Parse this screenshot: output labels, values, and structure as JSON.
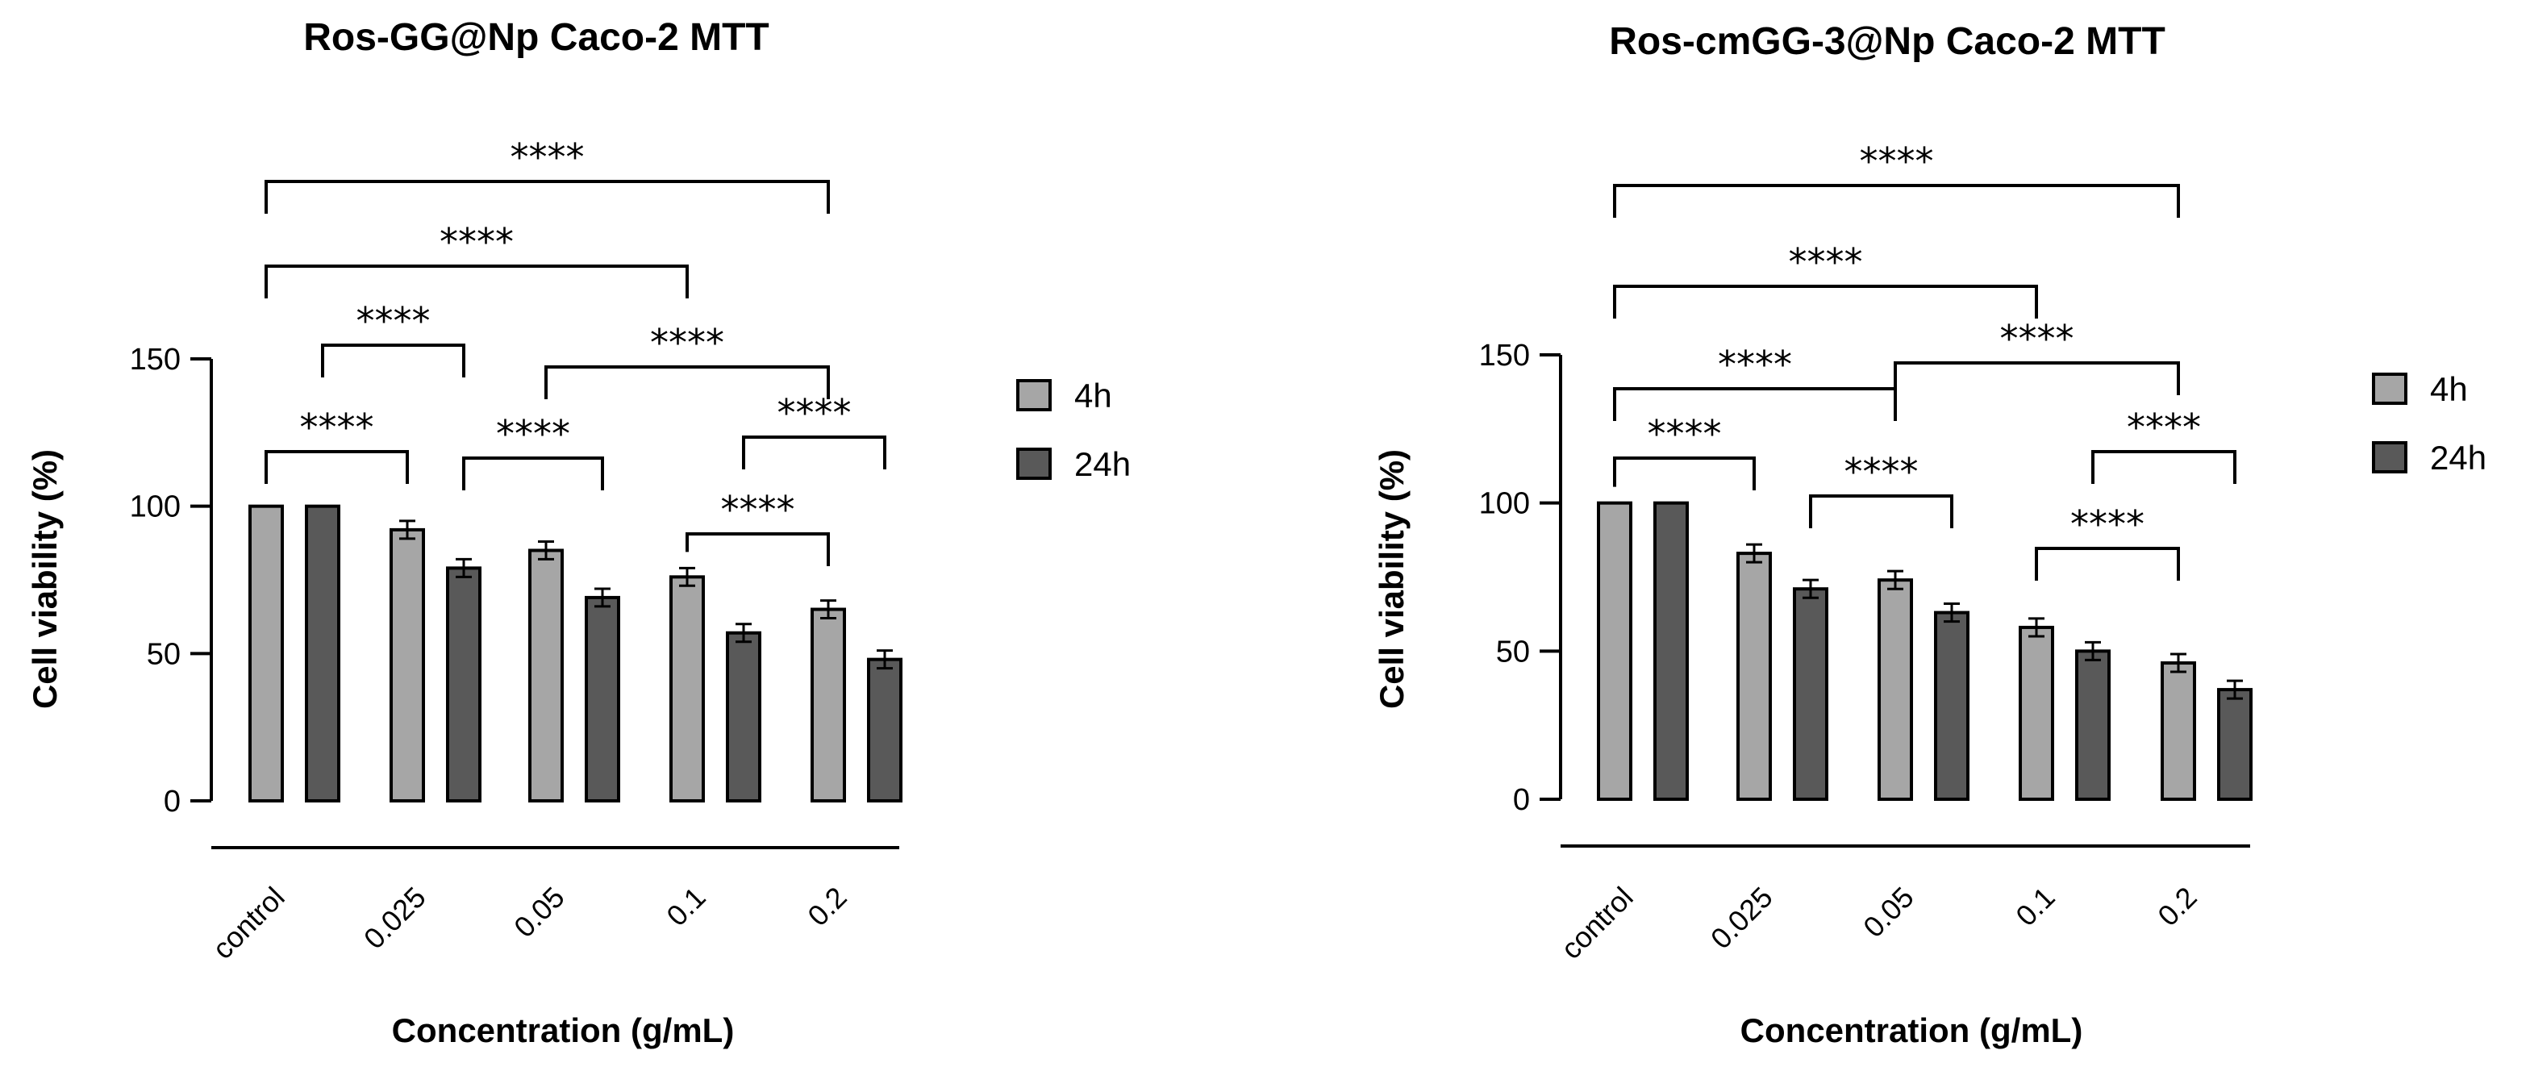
{
  "chart_data": [
    {
      "type": "bar",
      "title": "Ros-GG@Np Caco-2 MTT",
      "xlabel": "Concentration (g/mL)",
      "ylabel": "Cell viability (%)",
      "ylim": [
        0,
        150
      ],
      "yticks": [
        "0",
        "50",
        "100",
        "150"
      ],
      "categories": [
        "control",
        "0.025",
        "0.05",
        "0.1",
        "0.2"
      ],
      "legend_position": "right",
      "series": [
        {
          "name": "4h",
          "color": "#a6a6a6",
          "values": [
            100,
            92,
            85,
            76,
            65
          ],
          "errors": [
            0,
            3,
            3,
            3,
            3
          ]
        },
        {
          "name": "24h",
          "color": "#595959",
          "values": [
            100,
            79,
            69,
            57,
            48
          ],
          "errors": [
            0,
            3,
            3,
            3,
            3
          ]
        }
      ],
      "significance": [
        {
          "label": "****",
          "from": [
            0,
            0
          ],
          "to": [
            4,
            0
          ]
        },
        {
          "label": "****",
          "from": [
            0,
            0
          ],
          "to": [
            3,
            0
          ]
        },
        {
          "label": "****",
          "from": [
            0,
            1
          ],
          "to": [
            1,
            1
          ]
        },
        {
          "label": "****",
          "from": [
            2,
            0
          ],
          "to": [
            4,
            0
          ]
        },
        {
          "label": "****",
          "from": [
            0,
            0
          ],
          "to": [
            1,
            0
          ]
        },
        {
          "label": "****",
          "from": [
            1,
            1
          ],
          "to": [
            2,
            1
          ]
        },
        {
          "label": "****",
          "from": [
            3,
            1
          ],
          "to": [
            4,
            1
          ]
        },
        {
          "label": "****",
          "from": [
            3,
            0
          ],
          "to": [
            4,
            0
          ]
        }
      ]
    },
    {
      "type": "bar",
      "title": "Ros-cmGG-3@Np Caco-2 MTT",
      "xlabel": "Concentration (g/mL)",
      "ylabel": "Cell viability (%)",
      "ylim": [
        0,
        150
      ],
      "yticks": [
        "0",
        "50",
        "100",
        "150"
      ],
      "categories": [
        "control",
        "0.025",
        "0.05",
        "0.1",
        "0.2"
      ],
      "legend_position": "right",
      "series": [
        {
          "name": "4h",
          "color": "#a6a6a6",
          "values": [
            100,
            83,
            74,
            58,
            46
          ],
          "errors": [
            0,
            3,
            3,
            3,
            3
          ]
        },
        {
          "name": "24h",
          "color": "#595959",
          "values": [
            100,
            71,
            63,
            50,
            37
          ],
          "errors": [
            0,
            3,
            3,
            3,
            3
          ]
        }
      ],
      "significance": [
        {
          "label": "****",
          "from": [
            0,
            0
          ],
          "to": [
            4,
            0
          ]
        },
        {
          "label": "****",
          "from": [
            0,
            0
          ],
          "to": [
            3,
            0
          ]
        },
        {
          "label": "****",
          "from": [
            0,
            0
          ],
          "to": [
            2,
            0
          ]
        },
        {
          "label": "****",
          "from": [
            2,
            0
          ],
          "to": [
            4,
            0
          ]
        },
        {
          "label": "****",
          "from": [
            0,
            0
          ],
          "to": [
            1,
            0
          ]
        },
        {
          "label": "****",
          "from": [
            1,
            1
          ],
          "to": [
            2,
            1
          ]
        },
        {
          "label": "****",
          "from": [
            3,
            1
          ],
          "to": [
            4,
            1
          ]
        },
        {
          "label": "****",
          "from": [
            3,
            0
          ],
          "to": [
            4,
            0
          ]
        }
      ]
    }
  ]
}
